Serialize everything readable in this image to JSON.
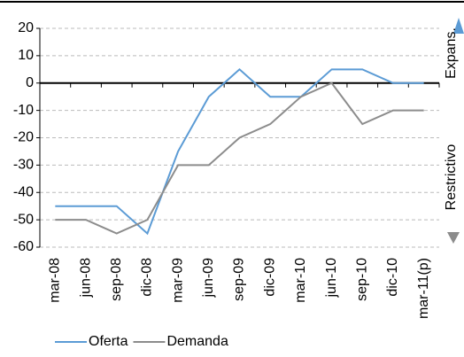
{
  "chart_data": {
    "type": "line",
    "categories": [
      "mar-08",
      "jun-08",
      "sep-08",
      "dic-08",
      "mar-09",
      "jun-09",
      "sep-09",
      "dic-09",
      "mar-10",
      "jun-10",
      "sep-10",
      "dic-10",
      "mar-11(p)"
    ],
    "series": [
      {
        "name": "Oferta",
        "color": "#5b9bd5",
        "values": [
          -45,
          -45,
          -45,
          -55,
          -25,
          -5,
          5,
          -5,
          -5,
          5,
          5,
          0,
          0
        ]
      },
      {
        "name": "Demanda",
        "color": "#8c8c8c",
        "values": [
          -50,
          -50,
          -55,
          -50,
          -30,
          -30,
          -20,
          -15,
          -5,
          0,
          -15,
          -10,
          -10
        ]
      }
    ],
    "ylim": [
      -60,
      20
    ],
    "yticks": [
      -60,
      -50,
      -40,
      -30,
      -20,
      -10,
      0,
      10,
      20
    ],
    "grid": true,
    "annotations": [
      "Expans.",
      "Restrictivo"
    ]
  }
}
